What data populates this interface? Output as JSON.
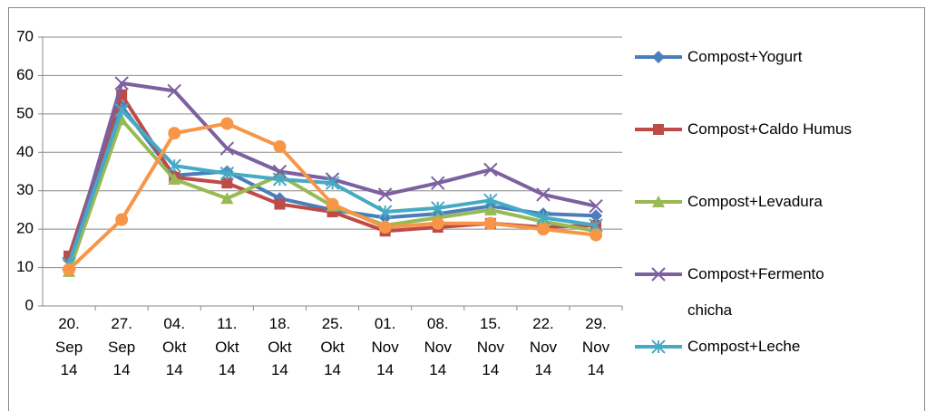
{
  "chart_data": {
    "type": "line",
    "categories": [
      "20. Sep 14",
      "27. Sep 14",
      "04. Okt 14",
      "11. Okt 14",
      "18. Okt 14",
      "25. Okt 14",
      "01. Nov 14",
      "08. Nov 14",
      "15. Nov 14",
      "22. Nov 14",
      "29. Nov 14"
    ],
    "series": [
      {
        "name": "Compost+Yogurt",
        "color": "#4a7ebb",
        "marker": "diamond",
        "values": [
          12,
          52,
          34,
          35,
          28,
          25,
          23,
          24,
          26,
          24,
          23.5
        ]
      },
      {
        "name": "Compost+Caldo Humus",
        "color": "#be4b48",
        "marker": "square",
        "values": [
          13,
          55,
          33.5,
          32,
          26.5,
          24.5,
          19.5,
          20.5,
          21.5,
          20.5,
          21
        ]
      },
      {
        "name": "Compost+Levadura",
        "color": "#98b954",
        "marker": "triangle",
        "values": [
          9,
          48.5,
          33,
          28,
          34,
          26,
          21,
          23,
          25,
          22,
          19.5
        ]
      },
      {
        "name": "Compost+Fermento chicha",
        "color": "#7d60a0",
        "marker": "x",
        "values": [
          11,
          58,
          56,
          41,
          35,
          33,
          29,
          32,
          35.5,
          29,
          26
        ]
      },
      {
        "name": "Compost+Leche",
        "color": "#46aac5",
        "marker": "star",
        "values": [
          11,
          51,
          36.5,
          34.5,
          33,
          32,
          24.5,
          25.5,
          27.5,
          23,
          21
        ]
      },
      {
        "color": "#f79646",
        "marker": "circle",
        "values": [
          9.5,
          22.5,
          45,
          47.5,
          41.5,
          26.5,
          20.5,
          21.5,
          21.5,
          20,
          18.5
        ]
      }
    ],
    "ylim": [
      0,
      70
    ],
    "yticks": [
      0,
      10,
      20,
      30,
      40,
      50,
      60,
      70
    ],
    "grid": true,
    "legend": "right"
  }
}
